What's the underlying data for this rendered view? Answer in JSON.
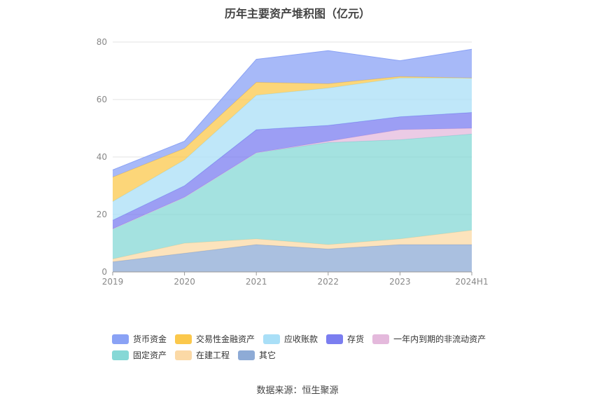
{
  "chart_data": {
    "type": "area",
    "stacked": true,
    "title": "历年主要资产堆积图（亿元）",
    "x": [
      "2019",
      "2020",
      "2021",
      "2022",
      "2023",
      "2024H1"
    ],
    "yticks": [
      "0",
      "20",
      "40",
      "60",
      "80"
    ],
    "ylim": [
      0,
      80
    ],
    "grid": true,
    "legend_position": "bottom",
    "series": [
      {
        "name": "其它",
        "color": "#8eabd6",
        "values": [
          3.5,
          6.5,
          9.5,
          8.0,
          9.5,
          9.5
        ]
      },
      {
        "name": "在建工程",
        "color": "#fbd9a6",
        "values": [
          1.0,
          3.5,
          2.0,
          1.5,
          2.0,
          5.0
        ]
      },
      {
        "name": "固定资产",
        "color": "#86d8d6",
        "values": [
          10.5,
          16.0,
          30.0,
          35.5,
          34.5,
          33.5
        ]
      },
      {
        "name": "一年内到期的非流动资产",
        "color": "#e4b9dc",
        "values": [
          0,
          0,
          0,
          0.5,
          3.5,
          2.0
        ]
      },
      {
        "name": "存货",
        "color": "#7b7ef0",
        "values": [
          3.0,
          4.0,
          8.0,
          5.5,
          4.5,
          5.5
        ]
      },
      {
        "name": "应收账款",
        "color": "#a9dff7",
        "values": [
          6.5,
          9.0,
          12.0,
          13.0,
          13.5,
          12.0
        ]
      },
      {
        "name": "交易性金融资产",
        "color": "#fbc84c",
        "values": [
          8.5,
          4.0,
          4.5,
          1.5,
          0.5,
          0
        ]
      },
      {
        "name": "货币资金",
        "color": "#8aa2f5",
        "values": [
          2.5,
          2.5,
          8.0,
          11.5,
          5.5,
          10.0
        ]
      }
    ]
  },
  "legend": {
    "rows": [
      [
        {
          "name": "货币资金",
          "color": "#8aa2f5"
        },
        {
          "name": "交易性金融资产",
          "color": "#fbc84c"
        },
        {
          "name": "应收账款",
          "color": "#a9dff7"
        },
        {
          "name": "存货",
          "color": "#7b7ef0"
        },
        {
          "name": "一年内到期的非流动资产",
          "color": "#e4b9dc"
        }
      ],
      [
        {
          "name": "固定资产",
          "color": "#86d8d6"
        },
        {
          "name": "在建工程",
          "color": "#fbd9a6"
        },
        {
          "name": "其它",
          "color": "#8eabd6"
        }
      ]
    ]
  },
  "source": "数据来源：恒生聚源"
}
